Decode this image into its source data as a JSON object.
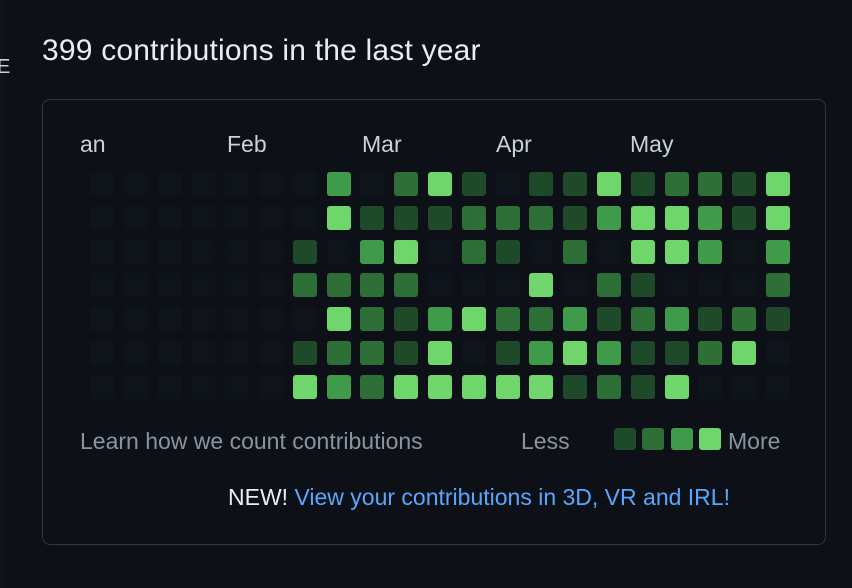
{
  "header": {
    "title": "399 contributions in the last year"
  },
  "edge": {
    "glyph": "E"
  },
  "calendar": {
    "months": [
      "an",
      "Feb",
      "Mar",
      "Apr",
      "May"
    ],
    "weeks": [
      [
        0,
        0,
        0,
        0,
        0,
        0,
        0
      ],
      [
        0,
        0,
        0,
        0,
        0,
        0,
        0
      ],
      [
        0,
        0,
        0,
        0,
        0,
        0,
        0
      ],
      [
        0,
        0,
        0,
        0,
        0,
        0,
        0
      ],
      [
        0,
        0,
        0,
        0,
        0,
        0,
        0
      ],
      [
        0,
        0,
        0,
        0,
        0,
        0,
        0
      ],
      [
        0,
        0,
        1,
        2,
        0,
        1,
        4
      ],
      [
        3,
        4,
        0,
        2,
        4,
        2,
        3
      ],
      [
        0,
        1,
        3,
        2,
        2,
        2,
        2
      ],
      [
        2,
        1,
        4,
        2,
        1,
        1,
        4
      ],
      [
        4,
        1,
        0,
        0,
        3,
        4,
        4
      ],
      [
        1,
        2,
        2,
        0,
        4,
        0,
        4
      ],
      [
        0,
        2,
        1,
        0,
        2,
        1,
        4
      ],
      [
        1,
        2,
        0,
        4,
        2,
        3,
        4
      ],
      [
        1,
        1,
        2,
        0,
        3,
        4,
        1
      ],
      [
        4,
        3,
        0,
        2,
        1,
        3,
        2
      ],
      [
        1,
        4,
        4,
        1,
        2,
        1,
        1
      ],
      [
        2,
        4,
        4,
        0,
        3,
        1,
        4
      ],
      [
        2,
        3,
        3,
        0,
        1,
        2,
        0
      ],
      [
        1,
        1,
        0,
        0,
        2,
        4,
        0
      ],
      [
        4,
        4,
        3,
        2,
        1,
        0,
        0
      ]
    ]
  },
  "footer": {
    "learn_link": "Learn how we count contributions",
    "less_label": "Less",
    "more_label": "More",
    "new_label": "NEW!",
    "new_link": "View your contributions in 3D, VR and IRL!"
  },
  "colors": {
    "level0": "#0f141a",
    "level1": "#1f4a29",
    "level2": "#2e6f38",
    "level3": "#3f9a4a",
    "level4": "#6ed66a",
    "link": "#58a6ff"
  }
}
